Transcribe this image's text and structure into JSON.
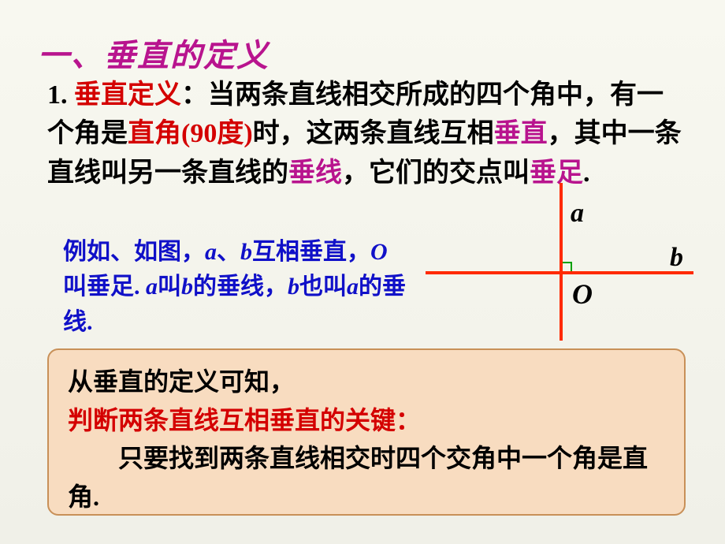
{
  "heading": "一、垂直的定义",
  "definition": {
    "num": "1.",
    "label_pre": " ",
    "label": "垂直定义",
    "colon": "：",
    "t1": "当两条直线相交所成的四个角中，有一个角是",
    "right_angle": "直角",
    "paren_open": "(",
    "ninety": "90度",
    "paren_close": ")",
    "t2": "时，这两条直线互相",
    "perp": "垂直",
    "t3": "，其中一条直线叫另一条直线的",
    "perpline": "垂线",
    "t4": "，它们的交点叫",
    "foot": "垂足",
    "period": "."
  },
  "example": {
    "t1": "例如、如图，",
    "a": "a",
    "sep1": "、",
    "b": "b",
    "t2": "互相垂直，",
    "O": "O",
    "t3": "叫垂足.",
    "sp": " ",
    "a2": "a",
    "t4": "叫",
    "b2": "b",
    "t5": "的垂线，",
    "b3": "b",
    "t6": "也叫",
    "a3": "a",
    "t7": "的垂线."
  },
  "diagram": {
    "label_a": "a",
    "label_b": "b",
    "label_o": "O",
    "line_color": "#ff2a00",
    "angle_color": "#00a000"
  },
  "summary": {
    "line1": "从垂直的定义可知，",
    "line2": "判断两条直线互相垂直的关键：",
    "line3a": "只要找到两条直线相交时四个交角中一个角是直角."
  },
  "colors": {
    "heading": "#b8148e",
    "red": "#d40000",
    "magenta": "#b8148e",
    "blue": "#1010c8",
    "box_bg": "#f8dcc0",
    "box_border": "#c89058"
  }
}
